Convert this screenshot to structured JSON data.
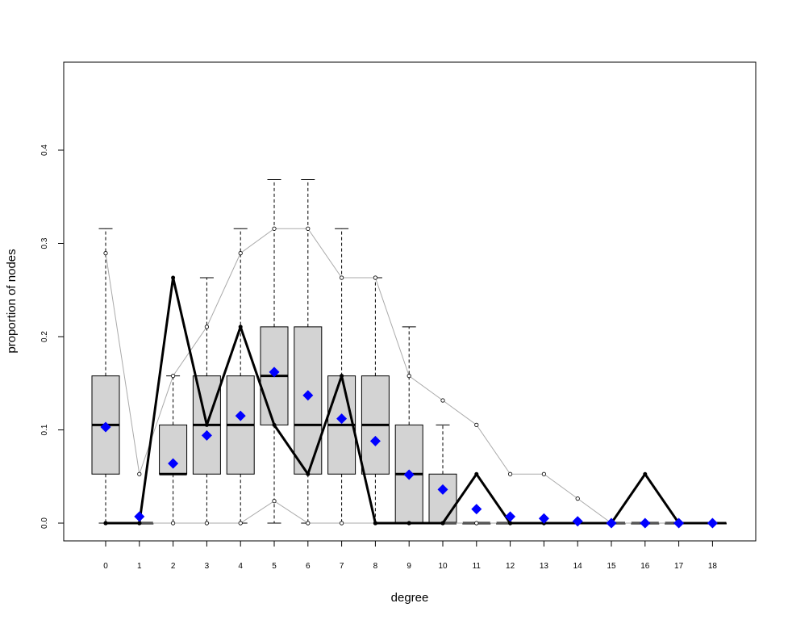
{
  "chart_data": {
    "type": "boxplot",
    "title": "",
    "xlabel": "degree",
    "ylabel": "proportion of nodes",
    "categories": [
      "0",
      "1",
      "2",
      "3",
      "4",
      "5",
      "6",
      "7",
      "8",
      "9",
      "10",
      "11",
      "12",
      "13",
      "14",
      "15",
      "16",
      "17",
      "18"
    ],
    "ylim": [
      -0.02,
      0.49
    ],
    "y_ticks": [
      "0.0",
      "0.1",
      "0.2",
      "0.3",
      "0.4"
    ],
    "boxes": [
      {
        "x": "0",
        "whisker_low": 0.0,
        "q1": 0.0526,
        "median": 0.1053,
        "q3": 0.1579,
        "whisker_high": 0.3158
      },
      {
        "x": "1",
        "whisker_low": 0.0,
        "q1": 0.0,
        "median": 0.0,
        "q3": 0.0,
        "whisker_high": 0.0
      },
      {
        "x": "2",
        "whisker_low": 0.0,
        "q1": 0.0526,
        "median": 0.0526,
        "q3": 0.1053,
        "whisker_high": 0.1579
      },
      {
        "x": "3",
        "whisker_low": 0.0,
        "q1": 0.0526,
        "median": 0.1053,
        "q3": 0.1579,
        "whisker_high": 0.2632
      },
      {
        "x": "4",
        "whisker_low": 0.0,
        "q1": 0.0526,
        "median": 0.1053,
        "q3": 0.1579,
        "whisker_high": 0.3158
      },
      {
        "x": "5",
        "whisker_low": 0.0,
        "q1": 0.1053,
        "median": 0.1579,
        "q3": 0.2105,
        "whisker_high": 0.3684
      },
      {
        "x": "6",
        "whisker_low": 0.0,
        "q1": 0.0526,
        "median": 0.1053,
        "q3": 0.2105,
        "whisker_high": 0.3684
      },
      {
        "x": "7",
        "whisker_low": 0.0,
        "q1": 0.0526,
        "median": 0.1053,
        "q3": 0.1579,
        "whisker_high": 0.3158
      },
      {
        "x": "8",
        "whisker_low": 0.0,
        "q1": 0.0526,
        "median": 0.1053,
        "q3": 0.1579,
        "whisker_high": 0.2632
      },
      {
        "x": "9",
        "whisker_low": 0.0,
        "q1": 0.0,
        "median": 0.0526,
        "q3": 0.1053,
        "whisker_high": 0.2105
      },
      {
        "x": "10",
        "whisker_low": 0.0,
        "q1": 0.0,
        "median": 0.0,
        "q3": 0.0526,
        "whisker_high": 0.1053
      },
      {
        "x": "11",
        "whisker_low": 0.0,
        "q1": 0.0,
        "median": 0.0,
        "q3": 0.0,
        "whisker_high": 0.0
      },
      {
        "x": "12",
        "whisker_low": 0.0,
        "q1": 0.0,
        "median": 0.0,
        "q3": 0.0,
        "whisker_high": 0.0
      },
      {
        "x": "13",
        "whisker_low": 0.0,
        "q1": 0.0,
        "median": 0.0,
        "q3": 0.0,
        "whisker_high": 0.0
      },
      {
        "x": "14",
        "whisker_low": 0.0,
        "q1": 0.0,
        "median": 0.0,
        "q3": 0.0,
        "whisker_high": 0.0
      },
      {
        "x": "15",
        "whisker_low": 0.0,
        "q1": 0.0,
        "median": 0.0,
        "q3": 0.0,
        "whisker_high": 0.0
      },
      {
        "x": "16",
        "whisker_low": 0.0,
        "q1": 0.0,
        "median": 0.0,
        "q3": 0.0,
        "whisker_high": 0.0
      },
      {
        "x": "17",
        "whisker_low": 0.0,
        "q1": 0.0,
        "median": 0.0,
        "q3": 0.0,
        "whisker_high": 0.0
      },
      {
        "x": "18",
        "whisker_low": 0.0,
        "q1": 0.0,
        "median": 0.0,
        "q3": 0.0,
        "whisker_high": 0.0
      }
    ],
    "series": [
      {
        "style": "thin-gray-line-open-circles",
        "values": [
          0.2895,
          0.0526,
          0.1579,
          0.2105,
          0.2895,
          0.3158,
          0.3158,
          0.2632,
          0.2632,
          0.1579,
          0.1316,
          0.1053,
          0.0526,
          0.0526,
          0.0263,
          0.0,
          0.0,
          0.0,
          0.0
        ]
      },
      {
        "style": "thin-gray-line-open-circles",
        "values": [
          0.0,
          0.0,
          0.0,
          0.0,
          0.0,
          0.0237,
          0.0,
          0.0,
          0.0,
          0.0,
          0.0,
          0.0,
          0.0,
          0.0,
          0.0,
          0.0,
          0.0,
          0.0,
          0.0
        ]
      },
      {
        "style": "thick-black-line",
        "values": [
          0.0,
          0.0,
          0.2632,
          0.1053,
          0.2105,
          0.1053,
          0.0526,
          0.1579,
          0.0,
          0.0,
          0.0,
          0.0526,
          0.0,
          0.0,
          0.0,
          0.0,
          0.0526,
          0.0,
          0.0
        ]
      },
      {
        "style": "blue-diamonds",
        "values": [
          0.103,
          0.007,
          0.064,
          0.094,
          0.115,
          0.162,
          0.137,
          0.112,
          0.088,
          0.052,
          0.036,
          0.015,
          0.007,
          0.005,
          0.002,
          0.0,
          0.0,
          0.0,
          0.0
        ]
      }
    ],
    "colors": {
      "box_fill": "#d3d3d3",
      "box_line": "#000000",
      "gray_line": "#aaaaaa",
      "thick_line": "#000000",
      "diamond": "#0000ff"
    },
    "grid": false,
    "legend": "none"
  }
}
